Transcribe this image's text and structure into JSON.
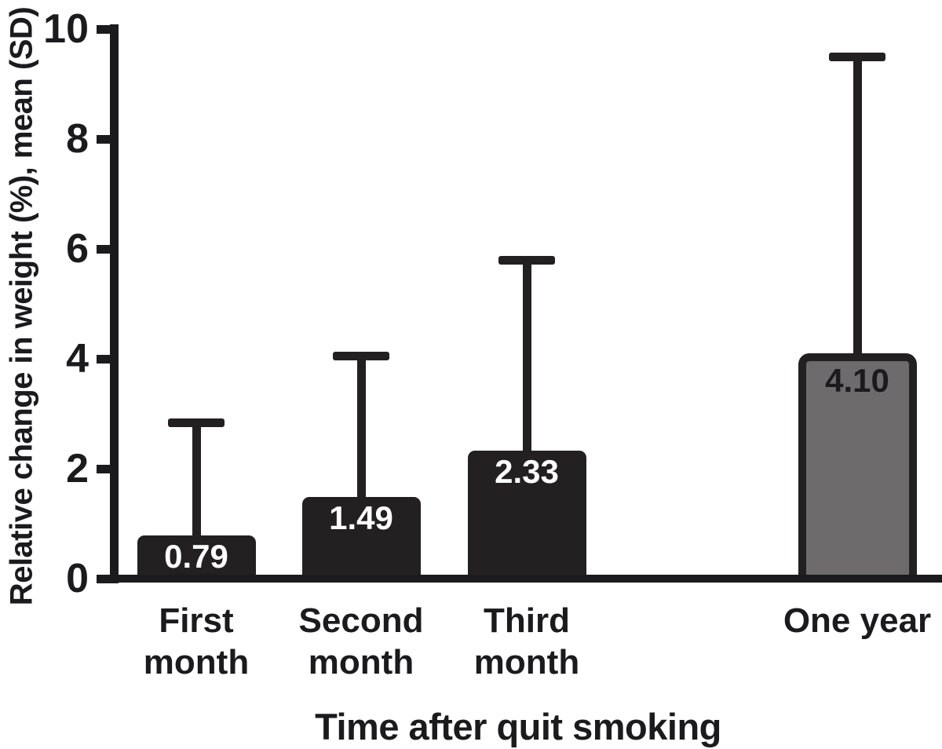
{
  "chart_data": {
    "type": "bar",
    "title": "",
    "xlabel": "Time after quit smoking",
    "ylabel": "Relative change in weight (%), mean (SD)",
    "categories": [
      "First month",
      "Second month",
      "Third month",
      "One year"
    ],
    "category_lines": [
      [
        "First",
        "month"
      ],
      [
        "Second",
        "month"
      ],
      [
        "Third",
        "month"
      ],
      [
        "One year"
      ]
    ],
    "values": [
      0.79,
      1.49,
      2.33,
      4.1
    ],
    "value_labels": [
      "0.79",
      "1.49",
      "2.33",
      "4.10"
    ],
    "error_bars": "upper SD whiskers with end caps",
    "error_sd_upper": [
      2.06,
      2.57,
      3.47,
      5.4
    ],
    "error_whisker_tops": [
      2.85,
      4.06,
      5.8,
      9.5
    ],
    "y_ticks": [
      0,
      2,
      4,
      6,
      8,
      10
    ],
    "ylim": [
      0,
      10
    ],
    "grid": false,
    "legend": null,
    "colors": {
      "background": "#ffffff",
      "ink": "#1b1b1d",
      "bar_fill_months": "#232021",
      "bar_fill_one_year": "#6d6b6c",
      "bar_border": "#232021",
      "value_label_on_dark": "#ffffff",
      "value_label_on_gray": "#1b1b1d"
    }
  }
}
